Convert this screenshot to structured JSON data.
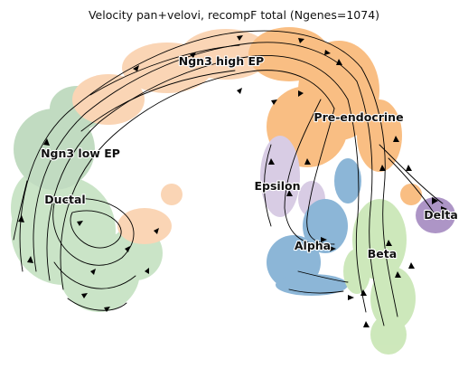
{
  "title": "Velocity pan+velovi, recompF total (Ngenes=1074)",
  "clusters": [
    {
      "name": "Ngn3 high EP",
      "color": "#f5a45a"
    },
    {
      "name": "Pre-endocrine",
      "color": "#f58a1f"
    },
    {
      "name": "Ngn3 low EP",
      "color": "#8fbf8f"
    },
    {
      "name": "Ductal",
      "color": "#9fcf9b"
    },
    {
      "name": "Epsilon",
      "color": "#b9a3cf"
    },
    {
      "name": "Delta",
      "color": "#6b3f98"
    },
    {
      "name": "Alpha",
      "color": "#2f7bb8"
    },
    {
      "name": "Beta",
      "color": "#a6d684"
    }
  ],
  "streamlines": {
    "color": "#000000"
  }
}
